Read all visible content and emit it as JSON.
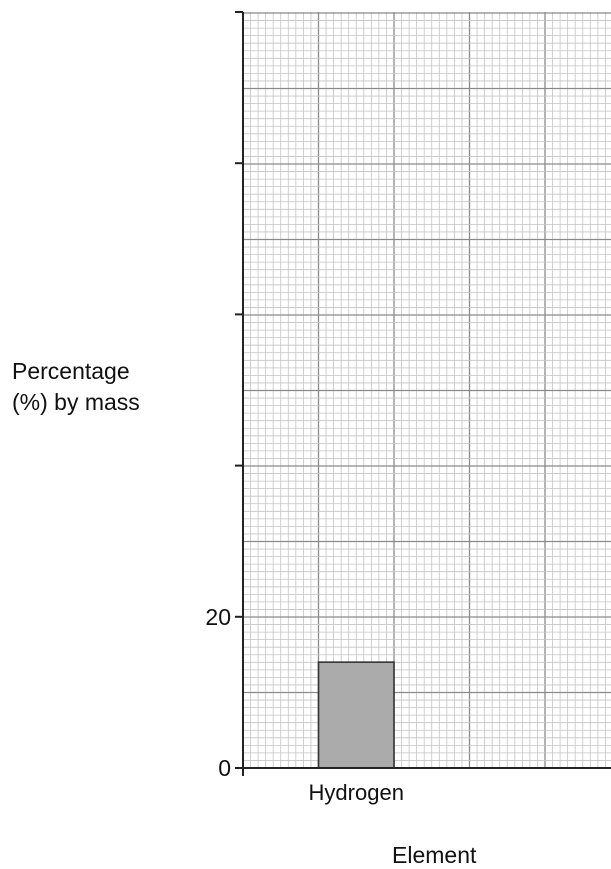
{
  "chart_data": {
    "type": "bar",
    "title": "",
    "xlabel": "Element",
    "ylabel_line1": "Percentage",
    "ylabel_line2": "(%) by mass",
    "categories": [
      "Hydrogen"
    ],
    "values": [
      14
    ],
    "ylim": [
      0,
      100
    ],
    "y_tick_labels": [
      {
        "value": 0,
        "label": "0"
      },
      {
        "value": 20,
        "label": "20"
      }
    ],
    "y_major_ticks": [
      0,
      20,
      40,
      60,
      80,
      100
    ],
    "grid": true,
    "bar_color": "#ababab"
  }
}
